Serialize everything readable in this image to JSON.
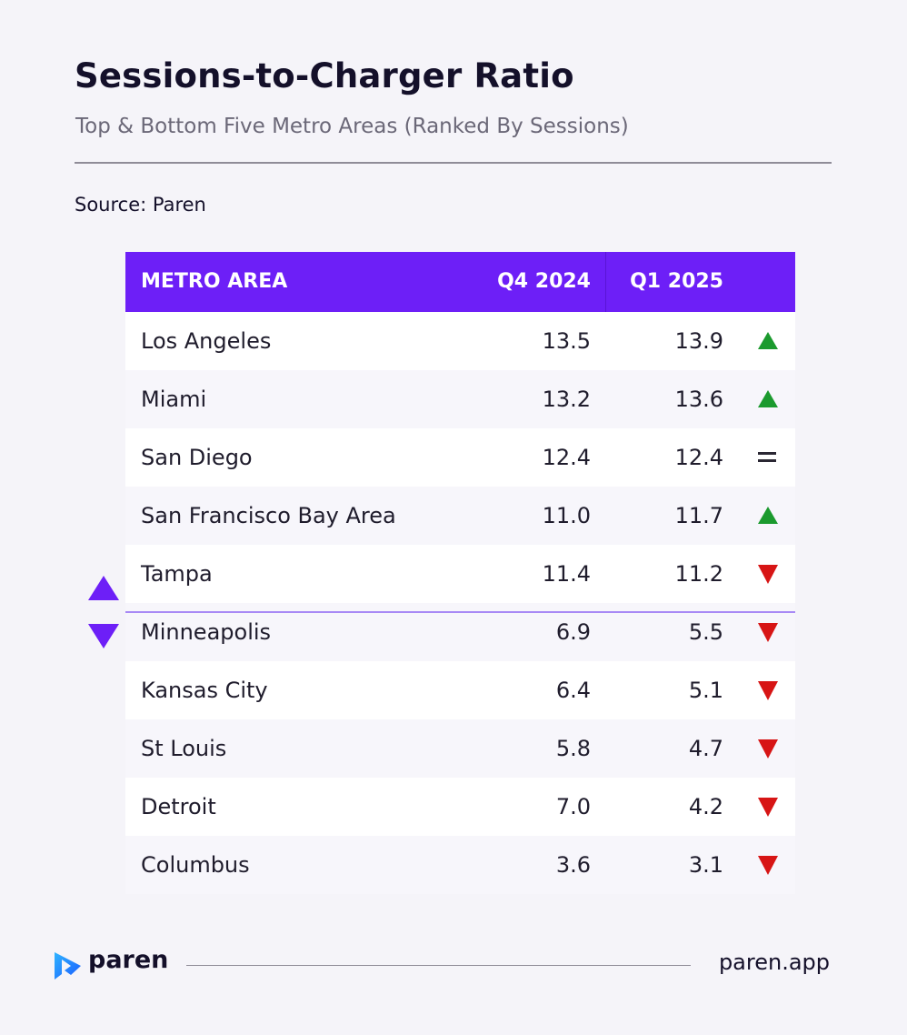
{
  "header": {
    "title": "Sessions-to-Charger Ratio",
    "subtitle": "Top & Bottom Five Metro Areas (Ranked By Sessions)",
    "source": "Source: Paren"
  },
  "table": {
    "columns": [
      "METRO AREA",
      "Q4 2024",
      "Q1 2025"
    ],
    "rows": [
      {
        "metro": "Los Angeles",
        "q4_2024": "13.5",
        "q1_2025": "13.9",
        "trend": "up"
      },
      {
        "metro": "Miami",
        "q4_2024": "13.2",
        "q1_2025": "13.6",
        "trend": "up"
      },
      {
        "metro": "San Diego",
        "q4_2024": "12.4",
        "q1_2025": "12.4",
        "trend": "equal"
      },
      {
        "metro": "San Francisco Bay Area",
        "q4_2024": "11.0",
        "q1_2025": "11.7",
        "trend": "up"
      },
      {
        "metro": "Tampa",
        "q4_2024": "11.4",
        "q1_2025": "11.2",
        "trend": "down"
      },
      {
        "metro": "Minneapolis",
        "q4_2024": "6.9",
        "q1_2025": "5.5",
        "trend": "down"
      },
      {
        "metro": "Kansas City",
        "q4_2024": "6.4",
        "q1_2025": "5.1",
        "trend": "down"
      },
      {
        "metro": "St Louis",
        "q4_2024": "5.8",
        "q1_2025": "4.7",
        "trend": "down"
      },
      {
        "metro": "Detroit",
        "q4_2024": "7.0",
        "q1_2025": "4.2",
        "trend": "down"
      },
      {
        "metro": "Columbus",
        "q4_2024": "3.6",
        "q1_2025": "3.1",
        "trend": "down"
      }
    ]
  },
  "chart_data": {
    "type": "table",
    "title": "Sessions-to-Charger Ratio",
    "subtitle": "Top & Bottom Five Metro Areas (Ranked By Sessions)",
    "columns": [
      "METRO AREA",
      "Q4 2024",
      "Q1 2025"
    ],
    "categories": [
      "Los Angeles",
      "Miami",
      "San Diego",
      "San Francisco Bay Area",
      "Tampa",
      "Minneapolis",
      "Kansas City",
      "St Louis",
      "Detroit",
      "Columbus"
    ],
    "series": [
      {
        "name": "Q4 2024",
        "values": [
          13.5,
          13.2,
          12.4,
          11.0,
          11.4,
          6.9,
          6.4,
          5.8,
          7.0,
          3.6
        ]
      },
      {
        "name": "Q1 2025",
        "values": [
          13.9,
          13.6,
          12.4,
          11.7,
          11.2,
          5.5,
          5.1,
          4.7,
          4.2,
          3.1
        ]
      }
    ],
    "groups": [
      "top-five",
      "bottom-five"
    ]
  },
  "colors": {
    "accent": "#6d1ff7",
    "up": "#1b9a2e",
    "down": "#d71515",
    "background": "#f5f4f9"
  },
  "icons": {
    "top_marker": "purple-up-triangle-icon",
    "bottom_marker": "purple-down-triangle-icon",
    "logo": "paren-logo-icon"
  },
  "footer": {
    "brand": "paren",
    "url": "paren.app"
  }
}
